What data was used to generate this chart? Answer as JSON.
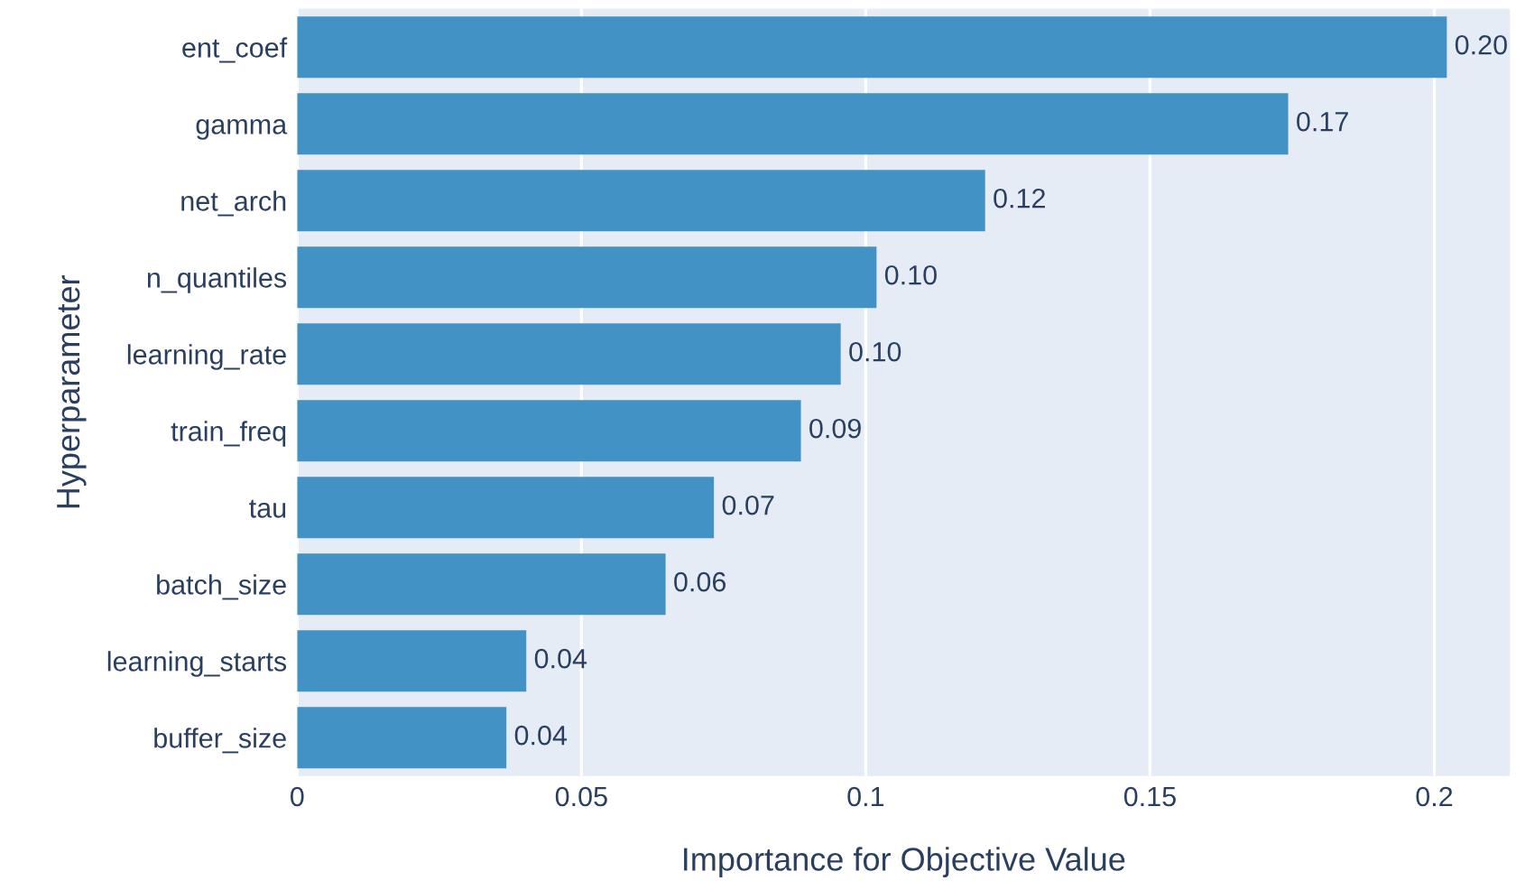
{
  "chart_data": {
    "type": "bar",
    "orientation": "horizontal",
    "xlabel": "Importance for Objective Value",
    "ylabel": "Hyperparameter",
    "categories": [
      "ent_coef",
      "gamma",
      "net_arch",
      "n_quantiles",
      "learning_rate",
      "train_freq",
      "tau",
      "batch_size",
      "learning_starts",
      "buffer_size"
    ],
    "values": [
      0.2022,
      0.1743,
      0.121,
      0.1019,
      0.0956,
      0.0886,
      0.0733,
      0.0648,
      0.0403,
      0.0368
    ],
    "value_labels": [
      "0.20",
      "0.17",
      "0.12",
      "0.10",
      "0.10",
      "0.09",
      "0.07",
      "0.06",
      "0.04",
      "0.04"
    ],
    "color": "#4292c6",
    "xlim": [
      0,
      0.2133
    ],
    "xticks": [
      0,
      0.05,
      0.1,
      0.15,
      0.2
    ],
    "grid": "x",
    "legend": false
  }
}
